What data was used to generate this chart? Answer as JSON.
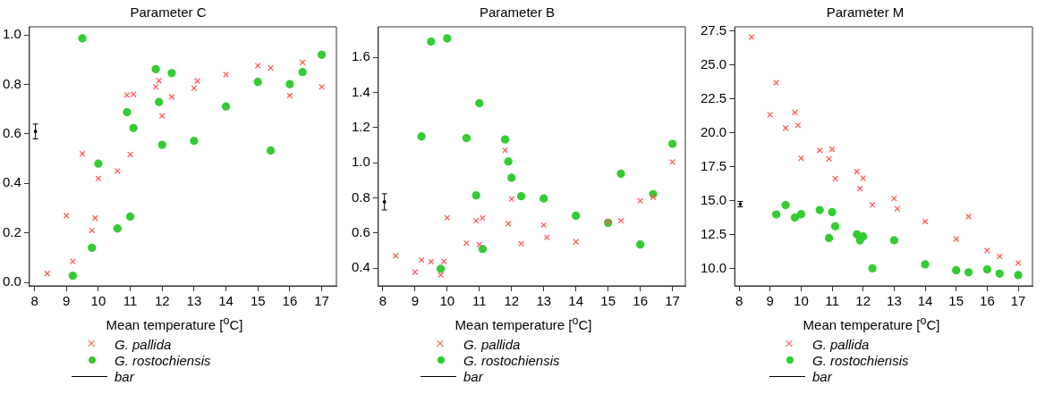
{
  "chart_data": [
    {
      "type": "scatter",
      "title": "Parameter C",
      "xlabel": "Mean temperature [$^{o}$C]",
      "xlim": [
        7.84,
        17.46
      ],
      "xticks": [
        8,
        9,
        10,
        11,
        12,
        13,
        14,
        15,
        16,
        17
      ],
      "ylim": [
        -0.014,
        1.033
      ],
      "yticks": [
        {
          "value": 0,
          "label": "0.0"
        },
        0.2,
        0.4,
        0.6,
        0.8,
        {
          "value": 1,
          "label": "1.0"
        }
      ],
      "grid": false,
      "legend": "bottom",
      "series": [
        {
          "name": "G. pallida",
          "color": "#ff5a5a",
          "marker": "cross",
          "x": [
            8.4,
            9.0,
            9.2,
            9.5,
            9.8,
            9.9,
            10.0,
            10.6,
            10.9,
            11.0,
            11.1,
            11.8,
            11.9,
            12.0,
            12.3,
            13.0,
            13.1,
            14.0,
            15.0,
            15.4,
            16.0,
            16.4,
            17.0
          ],
          "values": [
            0.036,
            0.27,
            0.085,
            0.52,
            0.21,
            0.26,
            0.42,
            0.45,
            0.757,
            0.517,
            0.76,
            0.79,
            0.815,
            0.673,
            0.75,
            0.785,
            0.814,
            0.84,
            0.876,
            0.867,
            0.755,
            0.889,
            0.79
          ]
        },
        {
          "name": "G. rostochiensis",
          "color": "#33cc33",
          "marker": "circle",
          "x": [
            9.2,
            9.5,
            9.8,
            10.0,
            10.6,
            10.9,
            11.0,
            11.1,
            11.8,
            11.9,
            12.0,
            12.3,
            13.0,
            14.0,
            15.0,
            15.4,
            16.0,
            16.4,
            17.0
          ],
          "values": [
            0.027,
            0.986,
            0.14,
            0.48,
            0.218,
            0.688,
            0.266,
            0.624,
            0.862,
            0.729,
            0.556,
            0.846,
            0.572,
            0.711,
            0.81,
            0.533,
            0.801,
            0.85,
            0.92
          ]
        },
        {
          "name": "bar",
          "color": "#000000",
          "x": [
            8.03
          ],
          "values": [
            0.61
          ],
          "errors": [
            0.03
          ]
        }
      ]
    },
    {
      "type": "scatter",
      "title": "Parameter B",
      "xlabel": "Mean temperature  [$^{o}$C]",
      "xlim": [
        7.86,
        17.4
      ],
      "xticks": [
        8,
        9,
        10,
        11,
        12,
        13,
        14,
        15,
        16,
        17
      ],
      "ylim": [
        0.3,
        1.774
      ],
      "yticks": [
        0.4,
        0.6,
        0.8,
        {
          "value": 1,
          "label": "1.0"
        },
        1.2,
        1.4,
        1.6
      ],
      "grid": false,
      "legend": "bottom",
      "series": [
        {
          "name": "G. pallida",
          "color": "#ff5a5a",
          "marker": "cross",
          "x": [
            8.4,
            9.0,
            9.2,
            9.5,
            9.8,
            9.9,
            10.0,
            10.6,
            10.9,
            11.0,
            11.1,
            11.8,
            11.9,
            12.0,
            12.3,
            13.0,
            13.1,
            14.0,
            15.0,
            15.4,
            16.0,
            16.4,
            17.0
          ],
          "values": [
            0.471,
            0.378,
            0.447,
            0.437,
            0.362,
            0.44,
            0.688,
            0.543,
            0.671,
            0.535,
            0.686,
            1.071,
            0.654,
            0.794,
            0.54,
            0.646,
            0.576,
            0.551,
            0.664,
            0.671,
            0.784,
            0.805,
            1.005
          ]
        },
        {
          "name": "G. rostochiensis",
          "color": "#33cc33",
          "marker": "circle",
          "x": [
            9.2,
            9.5,
            9.8,
            10.0,
            10.6,
            10.9,
            11.0,
            11.1,
            11.8,
            11.9,
            12.0,
            12.3,
            13.0,
            14.0,
            15.0,
            15.4,
            16.0,
            16.4,
            17.0
          ],
          "values": [
            1.15,
            1.69,
            0.397,
            1.708,
            1.141,
            0.815,
            1.339,
            0.51,
            1.133,
            1.008,
            0.915,
            0.81,
            0.797,
            0.699,
            0.659,
            0.938,
            0.535,
            0.822,
            1.108
          ]
        },
        {
          "name": "bar",
          "color": "#000000",
          "x": [
            8.05
          ],
          "values": [
            0.778
          ],
          "errors": [
            0.046
          ]
        }
      ]
    },
    {
      "type": "scatter",
      "title": "Parameter M",
      "xlabel": "Mean temperature [$^{o}$C]",
      "xlim": [
        7.86,
        17.46
      ],
      "xticks": [
        8,
        9,
        10,
        11,
        12,
        13,
        14,
        15,
        16,
        17
      ],
      "ylim": [
        8.75,
        27.8
      ],
      "yticks": [
        {
          "value": 10,
          "label": "10.0"
        },
        12.5,
        {
          "value": 15,
          "label": "15.0"
        },
        17.5,
        {
          "value": 20,
          "label": "20.0"
        },
        22.5,
        {
          "value": 25,
          "label": "25.0"
        },
        27.5
      ],
      "grid": false,
      "legend": "bottom",
      "series": [
        {
          "name": "G. pallida",
          "color": "#ff5a5a",
          "marker": "cross",
          "x": [
            8.4,
            9.0,
            9.2,
            9.5,
            9.8,
            9.9,
            10.0,
            10.6,
            10.9,
            11.0,
            11.1,
            11.8,
            11.9,
            12.0,
            12.3,
            13.0,
            13.1,
            14.0,
            15.0,
            15.4,
            16.0,
            16.4,
            17.0
          ],
          "values": [
            27.04,
            21.33,
            23.69,
            20.35,
            21.5,
            20.56,
            18.13,
            18.71,
            18.1,
            18.79,
            16.63,
            17.15,
            15.9,
            16.67,
            14.71,
            15.17,
            14.42,
            13.48,
            12.19,
            13.85,
            11.35,
            10.92,
            10.44
          ]
        },
        {
          "name": "G. rostochiensis",
          "color": "#33cc33",
          "marker": "circle",
          "x": [
            9.2,
            9.5,
            9.8,
            10.0,
            10.6,
            10.9,
            11.0,
            11.1,
            11.8,
            11.9,
            12.0,
            12.3,
            13.0,
            14.0,
            15.0,
            15.4,
            16.0,
            16.4,
            17.0
          ],
          "values": [
            14.0,
            14.69,
            13.77,
            14.02,
            14.33,
            12.27,
            14.17,
            13.13,
            12.54,
            12.1,
            12.38,
            10.04,
            12.1,
            10.33,
            9.9,
            9.75,
            9.96,
            9.65,
            9.54
          ]
        },
        {
          "name": "bar",
          "color": "#000000",
          "x": [
            8.04
          ],
          "values": [
            14.76
          ],
          "errors": [
            0.2
          ]
        }
      ]
    }
  ]
}
